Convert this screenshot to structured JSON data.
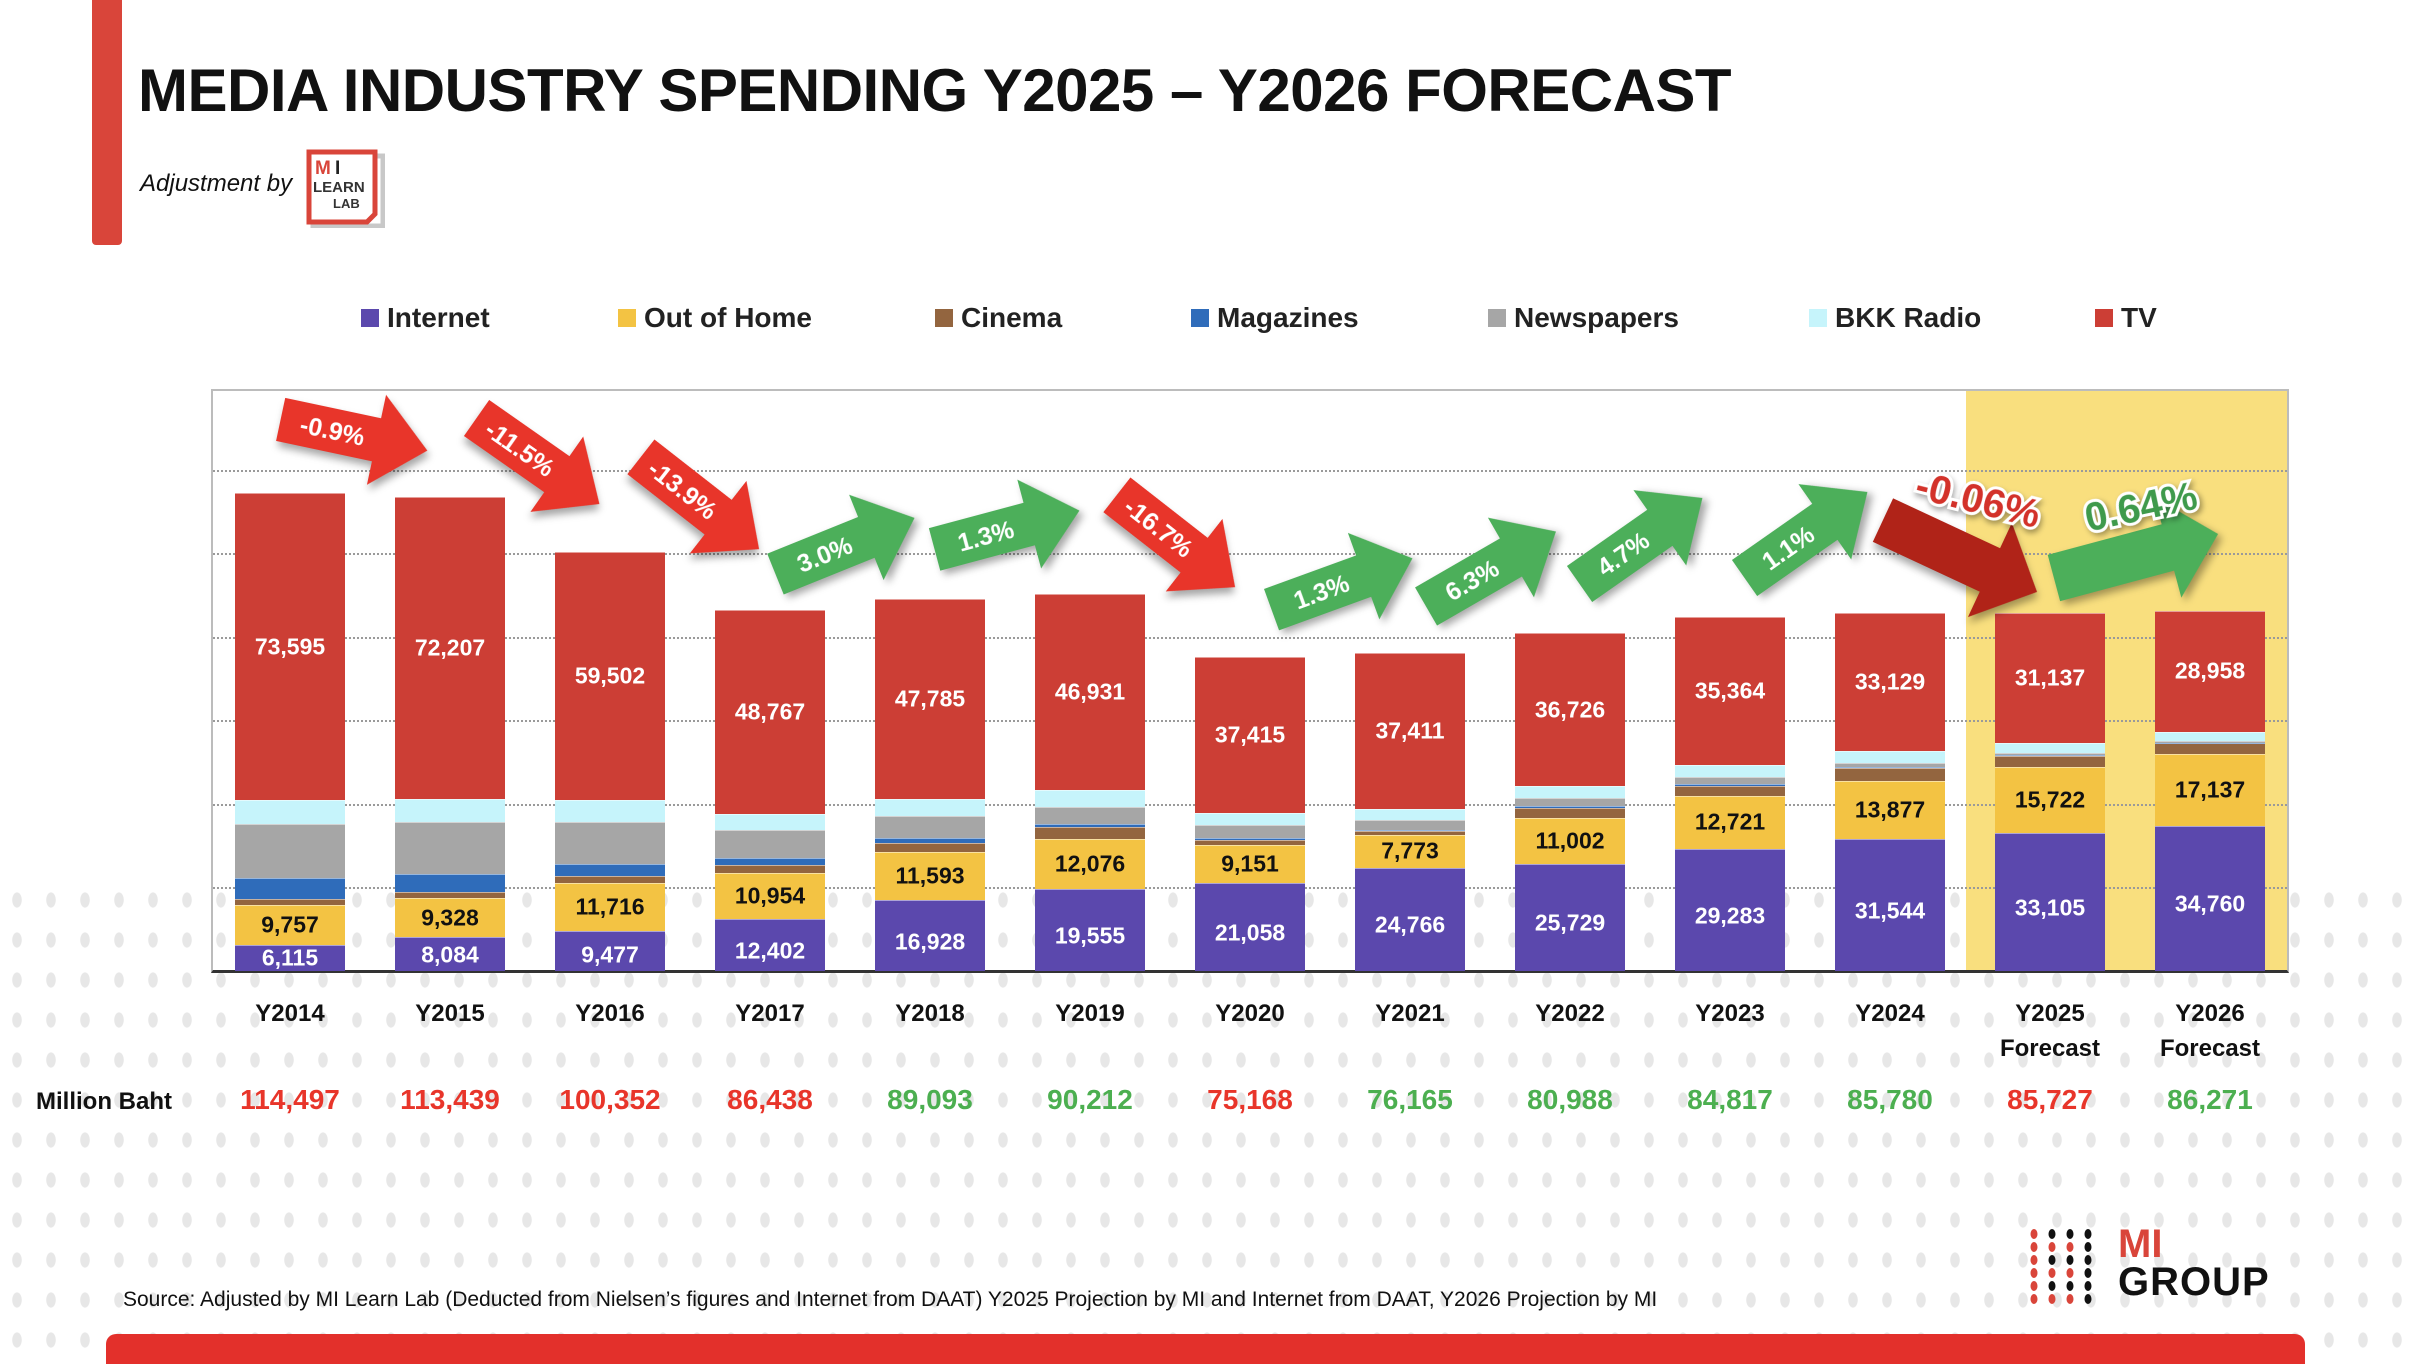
{
  "header": {
    "title": "MEDIA INDUSTRY SPENDING Y2025 – Y2026 FORECAST",
    "adjustment_label": "Adjustment by",
    "adjustment_logo_text": "MI LEARN LAB"
  },
  "chart_data": {
    "type": "bar",
    "stacked": true,
    "title": "",
    "xlabel": "",
    "ylabel": "",
    "ylim": [
      0,
      139400
    ],
    "gridlines": true,
    "grid_step": 20000,
    "legend_position": "top",
    "categories": [
      "Y2014",
      "Y2015",
      "Y2016",
      "Y2017",
      "Y2018",
      "Y2019",
      "Y2020",
      "Y2021",
      "Y2022",
      "Y2023",
      "Y2024",
      "Y2025 Forecast",
      "Y2026 Forecast"
    ],
    "highlighted_categories": [
      "Y2025 Forecast",
      "Y2026 Forecast"
    ],
    "highlight_color": "#f9df7e",
    "series": [
      {
        "name": "Internet",
        "color": "#5b48ad",
        "label_color": "#ffffff",
        "labeled": true,
        "values": [
          6115,
          8084,
          9477,
          12402,
          16928,
          19555,
          21058,
          24766,
          25729,
          29283,
          31544,
          33105,
          34760
        ]
      },
      {
        "name": "Out of Home",
        "color": "#f3c343",
        "label_color": "#111111",
        "labeled": true,
        "values": [
          9757,
          9328,
          11716,
          10954,
          11593,
          12076,
          9151,
          7773,
          11002,
          12721,
          13877,
          15722,
          17137
        ]
      },
      {
        "name": "Cinema",
        "color": "#93653f",
        "labeled": false,
        "values": [
          1430,
          1480,
          1575,
          1940,
          2207,
          2796,
          1131,
          901,
          2388,
          2421,
          3244,
          2702,
          2662
        ]
      },
      {
        "name": "Magazines",
        "color": "#2f6cba",
        "labeled": false,
        "values": [
          5000,
          4340,
          2967,
          1755,
          1196,
          746,
          566,
          360,
          367,
          372,
          278,
          180,
          92
        ]
      },
      {
        "name": "Newspapers",
        "color": "#a6a6a6",
        "labeled": false,
        "values": [
          13000,
          12460,
          10015,
          6740,
          5244,
          4194,
          3018,
          2252,
          1929,
          1583,
          927,
          450,
          367
        ]
      },
      {
        "name": "BKK Radio",
        "color": "#c6f4fb",
        "labeled": false,
        "values": [
          5600,
          5540,
          5100,
          3880,
          4140,
          3914,
          2829,
          2702,
          2847,
          3073,
          2781,
          2431,
          2295
        ]
      },
      {
        "name": "TV",
        "color": "#cc3e35",
        "label_color": "#ffffff",
        "labeled": true,
        "values": [
          73595,
          72207,
          59502,
          48767,
          47785,
          46931,
          37415,
          37411,
          36726,
          35364,
          33129,
          31137,
          28958
        ]
      }
    ],
    "totals_label": "Million Baht",
    "totals": [
      114497,
      113439,
      100352,
      86438,
      89093,
      90212,
      75168,
      76165,
      80988,
      84817,
      85780,
      85727,
      86271
    ],
    "total_colors": [
      "#e8352a",
      "#e8352a",
      "#e8352a",
      "#e8352a",
      "#4caf50",
      "#4caf50",
      "#e8352a",
      "#4caf50",
      "#4caf50",
      "#4caf50",
      "#4caf50",
      "#e8352a",
      "#4caf50"
    ],
    "growth_annotations": [
      {
        "label": "-0.9%",
        "direction": "down",
        "color": "#e8352a"
      },
      {
        "label": "-11.5%",
        "direction": "down",
        "color": "#e8352a"
      },
      {
        "label": "-13.9%",
        "direction": "down",
        "color": "#e8352a"
      },
      {
        "label": "3.0%",
        "direction": "up",
        "color": "#4caf5a"
      },
      {
        "label": "1.3%",
        "direction": "up",
        "color": "#4caf5a"
      },
      {
        "label": "-16.7%",
        "direction": "down",
        "color": "#e8352a"
      },
      {
        "label": "1.3%",
        "direction": "up",
        "color": "#4caf5a"
      },
      {
        "label": "6.3%",
        "direction": "up",
        "color": "#4caf5a"
      },
      {
        "label": "4.7%",
        "direction": "up",
        "color": "#4caf5a"
      },
      {
        "label": "1.1%",
        "direction": "up",
        "color": "#4caf5a"
      },
      {
        "label": "-0.06%",
        "direction": "down",
        "color": "#b02318",
        "text_color": "#d3322a"
      },
      {
        "label": "0.64%",
        "direction": "up",
        "color": "#4caf5a",
        "text_color": "#3f9a4c"
      }
    ]
  },
  "footer": {
    "source": "Source: Adjusted by MI Learn Lab (Deducted  from Nielsen’s figures and Internet from DAAT) Y2025 Projection by MI and Internet from DAAT, Y2026 Projection by MI",
    "brand_mi": "MI",
    "brand_group": "GROUP",
    "accent_color": "#e3302b"
  }
}
